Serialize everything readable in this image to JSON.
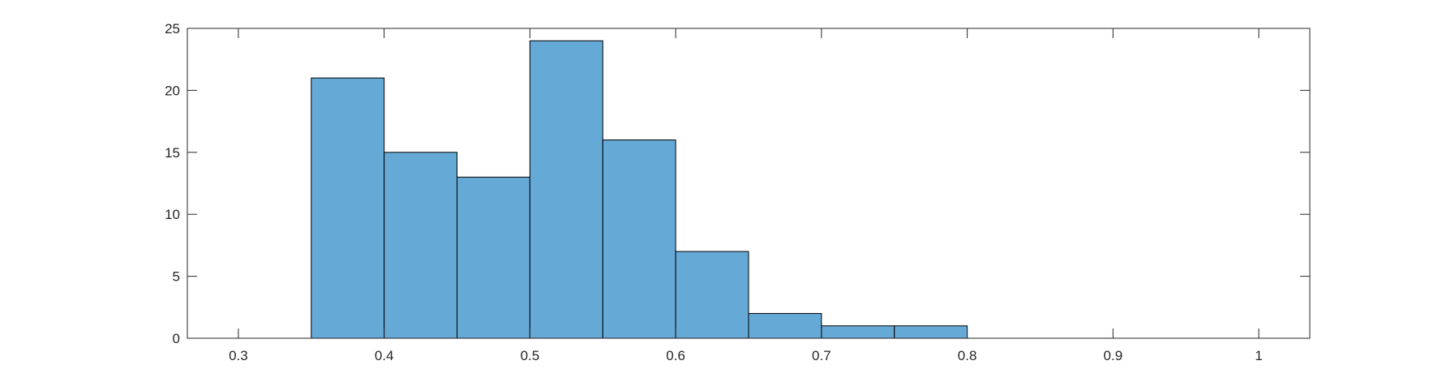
{
  "chart_data": {
    "type": "bar",
    "bin_edges": [
      0.35,
      0.4,
      0.45,
      0.5,
      0.55,
      0.6,
      0.65,
      0.7,
      0.75,
      0.8
    ],
    "values": [
      21,
      15,
      13,
      24,
      16,
      7,
      2,
      1,
      1
    ],
    "title": "",
    "xlabel": "",
    "ylabel": "",
    "xlim": [
      0.265,
      1.035
    ],
    "ylim": [
      0,
      25
    ],
    "xticks": [
      0.3,
      0.4,
      0.5,
      0.6,
      0.7,
      0.8,
      0.9,
      1
    ],
    "xtick_labels": [
      "0.3",
      "0.4",
      "0.5",
      "0.6",
      "0.7",
      "0.8",
      "0.9",
      "1"
    ],
    "yticks": [
      0,
      5,
      10,
      15,
      20,
      25
    ],
    "ytick_labels": [
      "0",
      "5",
      "10",
      "15",
      "20",
      "25"
    ],
    "bar_color": "#65a9d7",
    "edge_color": "#000000",
    "axis_color": "#262626",
    "grid": false,
    "legend": "none"
  }
}
